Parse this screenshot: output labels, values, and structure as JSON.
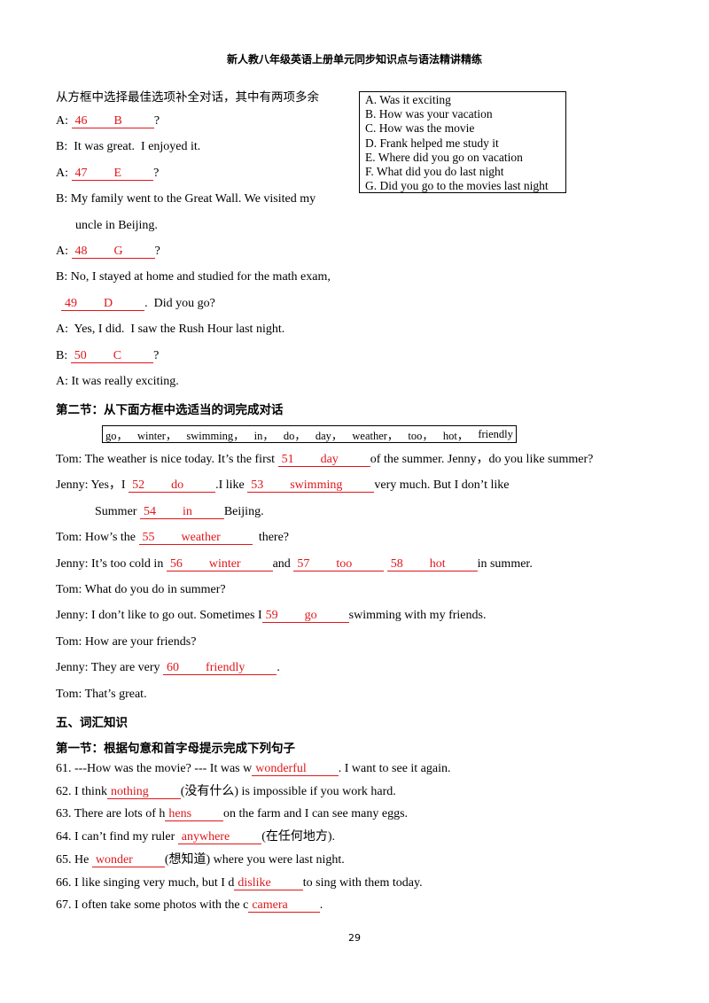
{
  "header": {
    "title": "新人教八年级英语上册单元同步知识点与语法精讲精练"
  },
  "section1": {
    "instruction": "从方框中选择最佳选项补全对话，其中有两项多余",
    "options": [
      "A. Was it exciting",
      "B. How was your vacation",
      "C. How was the movie",
      "D. Frank helped me study it",
      "E. Where did you go on vacation",
      "F. What did you do last night",
      "G. Did you go to the movies last night"
    ],
    "lines": [
      [
        "A: ",
        {
          "num": "46",
          "ans": "B"
        },
        "?"
      ],
      [
        "B:  It was great.  I enjoyed it."
      ],
      [
        "A: ",
        {
          "num": "47",
          "ans": "E"
        },
        "?"
      ],
      [
        "B: My family went to the Great Wall. We visited my"
      ],
      [
        "uncle in Beijing."
      ],
      [
        "A: ",
        {
          "num": "48",
          "ans": "G"
        },
        "?"
      ],
      [
        "B: No, I stayed at home and studied for the math exam,"
      ],
      [
        {
          "num": "49",
          "ans": "D"
        },
        ".  Did you go?"
      ],
      [
        "A:  Yes, I did.  I saw the Rush Hour last night."
      ],
      [
        "B: ",
        {
          "num": "50",
          "ans": "C"
        },
        "?"
      ],
      [
        "A: It was really exciting."
      ]
    ]
  },
  "section2": {
    "heading": "第二节：从下面方框中选适当的词完成对话",
    "words": [
      "go，",
      "winter，",
      "swimming，",
      "in，",
      "do，",
      "day，",
      "weather，",
      "too，",
      "hot，",
      "friendly"
    ],
    "lines": [
      [
        "Tom: The weather is nice today. It’s the first ",
        {
          "num": "51",
          "ans": "day"
        },
        "of the summer. Jenny，do you like summer?"
      ],
      [
        "Jenny: Yes，I ",
        {
          "num": "52",
          "ans": "do"
        },
        ".I like ",
        {
          "num": "53",
          "ans": "swimming"
        },
        "very much. But I don’t like"
      ],
      [
        "Summer ",
        {
          "num": "54",
          "ans": "in"
        },
        "Beijing."
      ],
      [
        "Tom: How’s the ",
        {
          "num": "55",
          "ans": "weather"
        },
        "  there?"
      ],
      [
        "Jenny: It’s too cold in ",
        {
          "num": "56",
          "ans": "winter"
        },
        "and ",
        {
          "num": "57",
          "ans": "too"
        },
        " ",
        {
          "num": "58",
          "ans": "hot"
        },
        "in summer."
      ],
      [
        "Tom: What do you do in summer?"
      ],
      [
        "Jenny: I don’t like to go out. Sometimes I",
        {
          "num": "59",
          "ans": "go"
        },
        "swimming with my friends."
      ],
      [
        "Tom: How are your friends?"
      ],
      [
        "Jenny: They are very ",
        {
          "num": "60",
          "ans": "friendly"
        },
        "."
      ],
      [
        "Tom: That’s great."
      ]
    ]
  },
  "section3": {
    "heading": "五、词汇知识",
    "subheading": "第一节：根据句意和首字母提示完成下列句子",
    "lines": [
      [
        "61. ---How was the movie? --- It was w",
        {
          "ans": "wonderful"
        },
        ". I want to see it again."
      ],
      [
        "62. I think",
        {
          "ans": "nothing"
        },
        "(没有什么) is impossible if you work hard."
      ],
      [
        "63. There are lots of h",
        {
          "ans": "hens"
        },
        "on the farm and I can see many eggs."
      ],
      [
        "64. I can’t find my ruler ",
        {
          "ans": "anywhere"
        },
        "(在任何地方)."
      ],
      [
        "65. He ",
        {
          "ans": "wonder"
        },
        "(想知道) where you were last night."
      ],
      [
        "66. I like singing very much, but I d",
        {
          "ans": "dislike"
        },
        "to sing with them today."
      ],
      [
        "67. I often take some photos with the c",
        {
          "ans": "camera"
        },
        "."
      ]
    ]
  },
  "footer": {
    "page_number": "29"
  }
}
